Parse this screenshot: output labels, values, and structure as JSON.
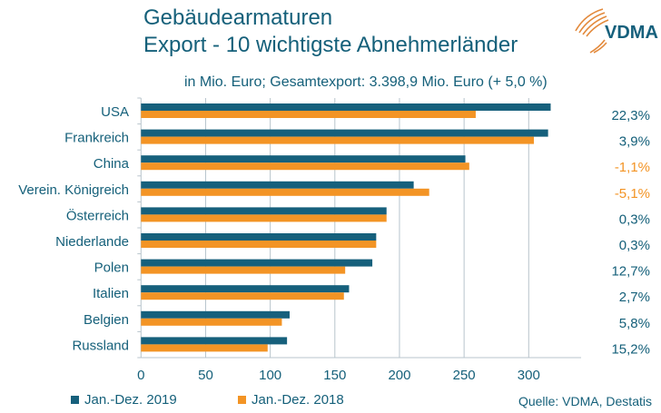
{
  "header": {
    "title_line1": "Gebäudearmaturen",
    "title_line2": "Export - 10 wichtigste Abnehmerländer",
    "subtitle": "in Mio. Euro; Gesamtexport: 3.398,9 Mio. Euro (+ 5,0 %)",
    "logo_text": "VDMA"
  },
  "colors": {
    "series_2019": "#16607c",
    "series_2018": "#f39425",
    "text": "#15607a",
    "negative": "#f39425",
    "grid": "#b8c4cc"
  },
  "chart_data": {
    "type": "bar",
    "orientation": "horizontal",
    "categories": [
      "USA",
      "Frankreich",
      "China",
      "Verein. Königreich",
      "Österreich",
      "Niederlande",
      "Polen",
      "Italien",
      "Belgien",
      "Russland"
    ],
    "series": [
      {
        "name": "Jan.-Dez. 2019",
        "values": [
          317,
          315,
          251,
          211,
          190,
          182,
          179,
          161,
          115,
          113
        ]
      },
      {
        "name": "Jan.-Dez. 2018",
        "values": [
          259,
          304,
          254,
          223,
          190,
          182,
          158,
          157,
          109,
          98
        ]
      }
    ],
    "change_labels": [
      "22,3%",
      "3,9%",
      "-1,1%",
      "-5,1%",
      "0,3%",
      "0,3%",
      "12,7%",
      "2,7%",
      "5,8%",
      "15,2%"
    ],
    "xlim": [
      0,
      340
    ],
    "xticks": [
      "0",
      "50",
      "100",
      "150",
      "200",
      "250",
      "300"
    ],
    "grid": true,
    "legend": "bottom-left"
  },
  "source": "Quelle: VDMA, Destatis"
}
